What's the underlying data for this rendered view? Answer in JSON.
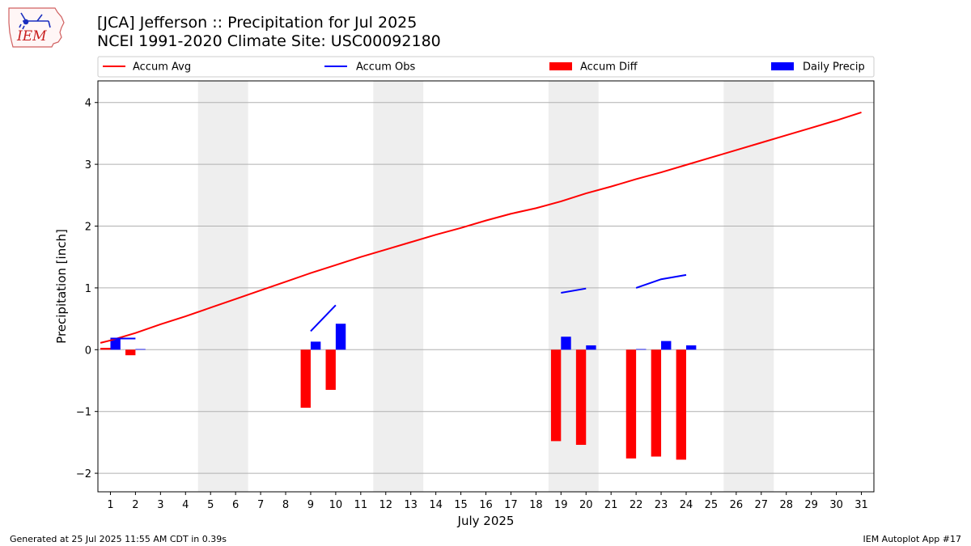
{
  "logo": {
    "text": "IEM"
  },
  "title_lines": [
    "[JCA] Jefferson :: Precipitation for Jul 2025",
    "NCEI 1991-2020 Climate Site: USC00092180"
  ],
  "footer": {
    "left": "Generated at 25 Jul 2025 11:55 AM CDT in 0.39s",
    "right": "IEM Autoplot App #17"
  },
  "chart_data": {
    "type": "bar",
    "xlabel": "July 2025",
    "ylabel": "Precipitation [inch]",
    "xlim": [
      0.5,
      31.5
    ],
    "ylim": [
      -2.3,
      4.35
    ],
    "yticks": [
      -2,
      -1,
      0,
      1,
      2,
      3,
      4
    ],
    "xticks": [
      1,
      2,
      3,
      4,
      5,
      6,
      7,
      8,
      9,
      10,
      11,
      12,
      13,
      14,
      15,
      16,
      17,
      18,
      19,
      20,
      21,
      22,
      23,
      24,
      25,
      26,
      27,
      28,
      29,
      30,
      31
    ],
    "grid": "horizontal",
    "legend_position": "top",
    "weekend_shading": [
      [
        5,
        6
      ],
      [
        12,
        13
      ],
      [
        19,
        20
      ],
      [
        26,
        27
      ]
    ],
    "series": [
      {
        "name": "Accum Avg",
        "kind": "line",
        "color": "#ff0000",
        "x": [
          0.6,
          1,
          2,
          3,
          4,
          5,
          6,
          7,
          8,
          9,
          10,
          11,
          12,
          13,
          14,
          15,
          16,
          17,
          18,
          19,
          20,
          21,
          22,
          23,
          24,
          25,
          26,
          27,
          28,
          29,
          30,
          31
        ],
        "values": [
          0.11,
          0.15,
          0.27,
          0.41,
          0.54,
          0.68,
          0.82,
          0.96,
          1.1,
          1.24,
          1.37,
          1.5,
          1.62,
          1.74,
          1.86,
          1.97,
          2.09,
          2.2,
          2.29,
          2.4,
          2.53,
          2.64,
          2.76,
          2.87,
          2.99,
          3.11,
          3.23,
          3.35,
          3.47,
          3.59,
          3.71,
          3.84
        ]
      },
      {
        "name": "Accum Obs",
        "kind": "line",
        "color": "#0000ff",
        "x": [
          1,
          2,
          3,
          4,
          5,
          6,
          7,
          8,
          9,
          10,
          11,
          12,
          13,
          14,
          15,
          16,
          17,
          18,
          19,
          20,
          21,
          22,
          23,
          24
        ],
        "values": [
          0.18,
          0.18,
          null,
          null,
          null,
          null,
          null,
          null,
          0.3,
          0.72,
          null,
          null,
          null,
          null,
          null,
          null,
          null,
          null,
          0.92,
          0.99,
          null,
          1.0,
          1.14,
          1.21
        ]
      },
      {
        "name": "Accum Diff",
        "kind": "bar",
        "color": "#ff0000",
        "offset": -0.2,
        "x": [
          1,
          2,
          9,
          10,
          19,
          20,
          22,
          23,
          24
        ],
        "values": [
          0.03,
          -0.09,
          -0.94,
          -0.65,
          -1.48,
          -1.54,
          -1.76,
          -1.73,
          -1.78
        ]
      },
      {
        "name": "Daily Precip",
        "kind": "bar",
        "color": "#0000ff",
        "offset": 0.2,
        "x": [
          1,
          2,
          9,
          10,
          19,
          20,
          22,
          23,
          24
        ],
        "values": [
          0.18,
          0.01,
          0.13,
          0.42,
          0.21,
          0.07,
          0.01,
          0.14,
          0.07
        ]
      }
    ]
  }
}
